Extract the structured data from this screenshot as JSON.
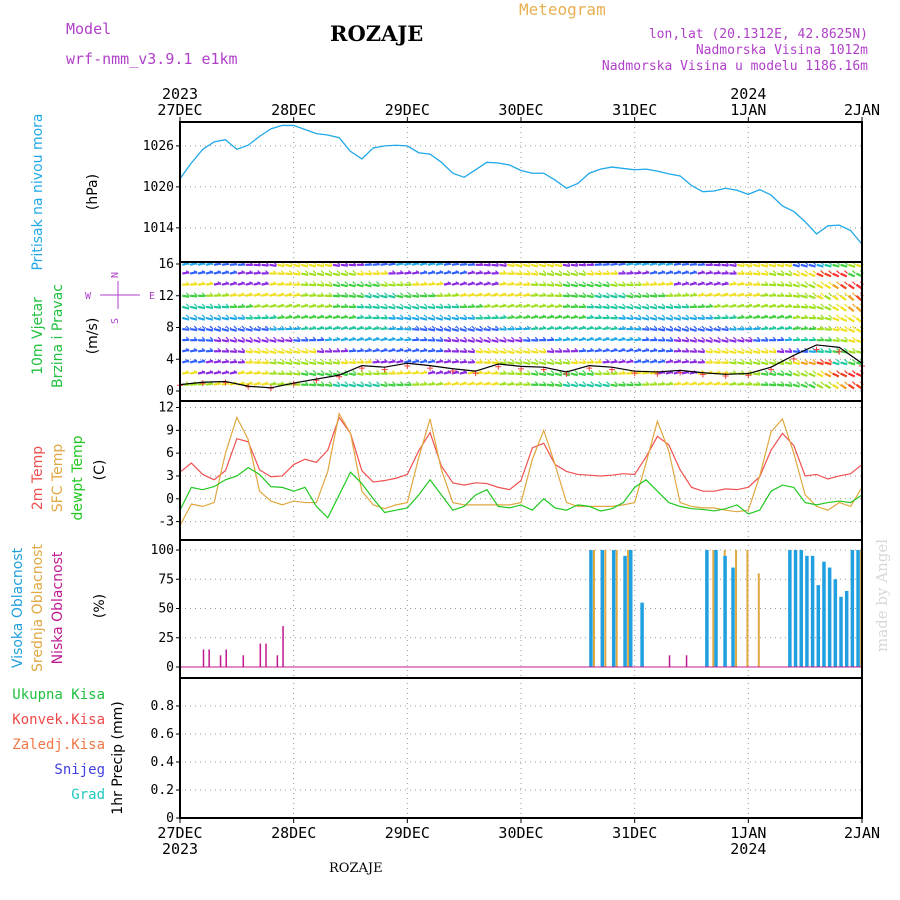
{
  "header": {
    "model_label": "Model",
    "model_name": "wrf-nmm_v3.9.1  e1km",
    "station": "ROZAJE",
    "meteogram_label": "Meteogram",
    "lonlat": "lon,lat (20.1312E, 42.8625N)",
    "altitude": "Nadmorska Visina 1012m",
    "model_altitude": "Nadmorska Visina u modelu 1186.16m",
    "made_by": "made by Angel",
    "footer_station": "ROZAJE"
  },
  "colors": {
    "pressure": "#20a8e8",
    "temp2m": "#f05050",
    "sfc": "#e0a840",
    "dewpt": "#20c820",
    "high": "#20a0e0",
    "mid": "#e0a840",
    "low": "#c01890",
    "total": "#20c040",
    "conv": "#f04848",
    "froz": "#f07848",
    "snow": "#4040e0",
    "hail": "#20c8c0"
  },
  "chart_data": [
    {
      "type": "line",
      "panel": "pressure",
      "ylabel": [
        "Pritisak na nivou mora",
        "(hPa)"
      ],
      "yticks": [
        "1014",
        "1020",
        "1026"
      ],
      "ylim": [
        1009,
        1029.5
      ],
      "grid": true,
      "series": [
        {
          "x": [
            0,
            0.1,
            0.2,
            0.3,
            0.4,
            0.5,
            0.6,
            0.7,
            0.8,
            0.9,
            1.0,
            1.1,
            1.2,
            1.3,
            1.4,
            1.5,
            1.6,
            1.7,
            1.8,
            1.9,
            2.0,
            2.1,
            2.2,
            2.3,
            2.4,
            2.5,
            2.6,
            2.7,
            2.8,
            2.9,
            3.0,
            3.1,
            3.2,
            3.3,
            3.4,
            3.5,
            3.6,
            3.7,
            3.8,
            3.9,
            4.0,
            4.1,
            4.2,
            4.3,
            4.4,
            4.5,
            4.6,
            4.7,
            4.8,
            4.9,
            5.0,
            5.1,
            5.2,
            5.3,
            5.4,
            5.5,
            5.6,
            5.7,
            5.8,
            5.9,
            6.0
          ],
          "y": [
            1021.2,
            1023.5,
            1025.5,
            1026.6,
            1026.9,
            1025.5,
            1026.1,
            1027.4,
            1028.5,
            1029.0,
            1029.0,
            1028.4,
            1027.8,
            1027.6,
            1027.2,
            1025.2,
            1024.1,
            1025.7,
            1026.0,
            1026.1,
            1026.0,
            1025.0,
            1024.8,
            1023.6,
            1022.0,
            1021.4,
            1022.5,
            1023.6,
            1023.5,
            1023.2,
            1022.4,
            1022.0,
            1022.0,
            1021.0,
            1019.8,
            1020.5,
            1022.0,
            1022.6,
            1022.9,
            1022.7,
            1022.5,
            1022.6,
            1022.3,
            1021.9,
            1021.6,
            1020.2,
            1019.3,
            1019.4,
            1019.8,
            1019.5,
            1018.9,
            1019.6,
            1018.8,
            1017.2,
            1016.4,
            1014.9,
            1013.1,
            1014.3,
            1014.4,
            1013.6,
            1011.6
          ]
        }
      ]
    },
    {
      "type": "scatter",
      "panel": "wind",
      "ylabel": [
        "10m Vjetar",
        "Brzina i Pravac",
        "(m/s)"
      ],
      "compass": [
        "N",
        "E",
        "S",
        "W"
      ],
      "yticks": [
        "0",
        "4",
        "8",
        "12",
        "16"
      ],
      "ylim": [
        0,
        16
      ],
      "grid": true,
      "speed_x": [
        0,
        0.2,
        0.4,
        0.6,
        0.8,
        1.0,
        1.2,
        1.4,
        1.6,
        1.8,
        2.0,
        2.2,
        2.4,
        2.6,
        2.8,
        3.0,
        3.2,
        3.4,
        3.6,
        3.8,
        4.0,
        4.2,
        4.4,
        4.6,
        4.8,
        5.0,
        5.2,
        5.4,
        5.6,
        5.8,
        6.0
      ],
      "speed_y": [
        0.8,
        1.1,
        1.2,
        0.6,
        0.4,
        1.0,
        1.5,
        2.0,
        3.2,
        3.0,
        3.5,
        3.2,
        2.8,
        2.5,
        3.4,
        3.1,
        3.0,
        2.4,
        3.2,
        3.0,
        2.5,
        2.4,
        2.6,
        2.3,
        2.1,
        2.2,
        3.0,
        4.5,
        5.8,
        5.5,
        3.5
      ]
    },
    {
      "type": "line",
      "panel": "temperature",
      "ylabel": [
        "2m Temp",
        "SFC Temp",
        "dewpt Temp",
        "(C)"
      ],
      "yticks": [
        "-3",
        "0",
        "3",
        "6",
        "9",
        "12"
      ],
      "ylim": [
        -4.5,
        12.2
      ],
      "grid": true,
      "series": [
        {
          "x": [
            0,
            0.1,
            0.2,
            0.3,
            0.4,
            0.5,
            0.6,
            0.7,
            0.8,
            0.9,
            1.0,
            1.1,
            1.2,
            1.3,
            1.4,
            1.5,
            1.6,
            1.7,
            1.8,
            1.9,
            2.0,
            2.1,
            2.2,
            2.3,
            2.4,
            2.5,
            2.6,
            2.7,
            2.8,
            2.9,
            3.0,
            3.1,
            3.2,
            3.3,
            3.4,
            3.5,
            3.6,
            3.7,
            3.8,
            3.9,
            4.0,
            4.1,
            4.2,
            4.3,
            4.4,
            4.5,
            4.6,
            4.7,
            4.8,
            4.9,
            5.0,
            5.1,
            5.2,
            5.3,
            5.4,
            5.5,
            5.6,
            5.7,
            5.8,
            5.9,
            6.0
          ],
          "y": [
            3.5,
            4.7,
            3.2,
            2.5,
            3.7,
            7.9,
            7.5,
            3.8,
            2.9,
            3.0,
            4.5,
            5.2,
            4.8,
            6.4,
            10.7,
            8.6,
            3.7,
            2.2,
            2.4,
            2.7,
            3.2,
            6.3,
            8.7,
            4.3,
            2.1,
            1.8,
            2.1,
            2.0,
            1.5,
            1.2,
            2.4,
            6.7,
            7.3,
            4.5,
            3.6,
            3.2,
            3.1,
            3.0,
            3.1,
            3.3,
            3.2,
            5.5,
            8.2,
            7.1,
            3.8,
            1.5,
            1.0,
            1.0,
            1.3,
            1.2,
            1.5,
            2.9,
            6.4,
            8.6,
            7.0,
            3.0,
            3.2,
            2.6,
            3.0,
            3.3,
            4.5
          ]
        },
        {
          "x": [
            0,
            0.1,
            0.2,
            0.3,
            0.4,
            0.5,
            0.6,
            0.7,
            0.8,
            0.9,
            1.0,
            1.1,
            1.2,
            1.3,
            1.4,
            1.5,
            1.6,
            1.7,
            1.8,
            1.9,
            2.0,
            2.1,
            2.2,
            2.3,
            2.4,
            2.5,
            2.6,
            2.7,
            2.8,
            2.9,
            3.0,
            3.1,
            3.2,
            3.3,
            3.4,
            3.5,
            3.6,
            3.7,
            3.8,
            3.9,
            4.0,
            4.1,
            4.2,
            4.3,
            4.4,
            4.5,
            4.6,
            4.7,
            4.8,
            4.9,
            5.0,
            5.1,
            5.2,
            5.3,
            5.4,
            5.5,
            5.6,
            5.7,
            5.8,
            5.9,
            6.0
          ],
          "y": [
            -3.5,
            -0.7,
            -1.0,
            -0.5,
            6.0,
            10.7,
            7.8,
            1.0,
            -0.3,
            -0.8,
            -0.3,
            -0.5,
            -0.5,
            3.6,
            11.2,
            8.6,
            1.0,
            -0.8,
            -1.3,
            -0.8,
            -0.5,
            5.4,
            10.5,
            3.8,
            -0.5,
            -0.8,
            -0.8,
            -0.8,
            -0.8,
            -0.8,
            -0.5,
            5.2,
            9.0,
            4.5,
            -0.5,
            -1.0,
            -1.0,
            -1.0,
            -1.0,
            -0.8,
            -0.5,
            4.7,
            10.2,
            6.3,
            -0.5,
            -1.0,
            -1.2,
            -1.2,
            -1.5,
            -1.7,
            -1.5,
            3.0,
            8.8,
            10.5,
            6.0,
            0.5,
            -1.0,
            -1.5,
            -0.5,
            -1.0,
            1.5
          ]
        },
        {
          "x": [
            0,
            0.1,
            0.2,
            0.3,
            0.4,
            0.5,
            0.6,
            0.7,
            0.8,
            0.9,
            1.0,
            1.1,
            1.2,
            1.3,
            1.4,
            1.5,
            1.6,
            1.7,
            1.8,
            1.9,
            2.0,
            2.1,
            2.2,
            2.3,
            2.4,
            2.5,
            2.6,
            2.7,
            2.8,
            2.9,
            3.0,
            3.1,
            3.2,
            3.3,
            3.4,
            3.5,
            3.6,
            3.7,
            3.8,
            3.9,
            4.0,
            4.1,
            4.2,
            4.3,
            4.4,
            4.5,
            4.6,
            4.7,
            4.8,
            4.9,
            5.0,
            5.1,
            5.2,
            5.3,
            5.4,
            5.5,
            5.6,
            5.7,
            5.8,
            5.9,
            6.0
          ],
          "y": [
            -1.5,
            1.5,
            1.2,
            1.6,
            2.5,
            3.0,
            4.1,
            3.2,
            1.6,
            1.5,
            1.0,
            1.5,
            -1.0,
            -2.5,
            0.5,
            3.5,
            2.0,
            0.0,
            -1.8,
            -1.5,
            -1.2,
            0.5,
            2.5,
            0.5,
            -1.5,
            -1.0,
            0.5,
            1.2,
            -1.0,
            -1.2,
            -0.8,
            -1.5,
            0.0,
            -1.2,
            -1.5,
            -0.8,
            -1.0,
            -1.6,
            -1.3,
            -0.5,
            1.5,
            2.5,
            1.0,
            -0.5,
            -1.0,
            -1.3,
            -1.4,
            -1.6,
            -1.3,
            -0.8,
            -2.0,
            -1.5,
            1.0,
            1.8,
            1.5,
            -0.5,
            -0.8,
            -0.5,
            -0.3,
            -0.5,
            0.5
          ]
        }
      ]
    },
    {
      "type": "bar",
      "panel": "cloud",
      "ylabel": [
        "Visoka Oblacnost",
        "Srednja Oblacnost",
        "Niska Oblacnost",
        "(%)"
      ],
      "yticks": [
        "0",
        "25",
        "50",
        "75",
        "100"
      ],
      "ylim": [
        0,
        100
      ],
      "grid": true,
      "high": [
        [
          3.6,
          100
        ],
        [
          3.7,
          100
        ],
        [
          3.8,
          100
        ],
        [
          3.9,
          95
        ],
        [
          3.95,
          100
        ],
        [
          4.05,
          55
        ],
        [
          4.62,
          100
        ],
        [
          4.7,
          100
        ],
        [
          4.78,
          95
        ],
        [
          4.85,
          85
        ],
        [
          5.35,
          100
        ],
        [
          5.4,
          100
        ],
        [
          5.45,
          100
        ],
        [
          5.5,
          95
        ],
        [
          5.55,
          95
        ],
        [
          5.6,
          70
        ],
        [
          5.65,
          90
        ],
        [
          5.7,
          85
        ],
        [
          5.75,
          75
        ],
        [
          5.8,
          60
        ],
        [
          5.85,
          65
        ],
        [
          5.9,
          100
        ],
        [
          5.95,
          100
        ]
      ],
      "mid": [
        [
          3.62,
          100
        ],
        [
          3.72,
          100
        ],
        [
          3.82,
          100
        ],
        [
          3.92,
          100
        ],
        [
          4.67,
          100
        ],
        [
          4.77,
          100
        ],
        [
          4.87,
          100
        ],
        [
          4.97,
          100
        ],
        [
          5.07,
          80
        ],
        [
          5.97,
          100
        ]
      ],
      "low": [
        [
          0.2,
          15
        ],
        [
          0.25,
          15
        ],
        [
          0.35,
          10
        ],
        [
          0.4,
          15
        ],
        [
          0.55,
          10
        ],
        [
          0.7,
          20
        ],
        [
          0.75,
          20
        ],
        [
          0.85,
          10
        ],
        [
          0.9,
          35
        ],
        [
          4.3,
          10
        ],
        [
          4.45,
          10
        ]
      ]
    },
    {
      "type": "bar",
      "panel": "precip",
      "ylabel": [
        "1hr Precip (mm)"
      ],
      "yticks": [
        "0",
        "0.2",
        "0.4",
        "0.6",
        "0.8"
      ],
      "ylim": [
        0,
        1.0
      ],
      "grid": true,
      "legend": [
        "Ukupna Kisa",
        "Konvek.Kisa",
        "Zaledj.Kisa",
        "Snijeg",
        "Grad"
      ],
      "values": []
    }
  ],
  "time_axis": {
    "top_labels": [
      "27DEC",
      "28DEC",
      "29DEC",
      "30DEC",
      "31DEC",
      "1JAN",
      "2JAN"
    ],
    "bottom_labels": [
      "27DEC",
      "28DEC",
      "29DEC",
      "30DEC",
      "31DEC",
      "1JAN",
      "2JAN"
    ],
    "year_labels": [
      "2023",
      "2024"
    ]
  }
}
